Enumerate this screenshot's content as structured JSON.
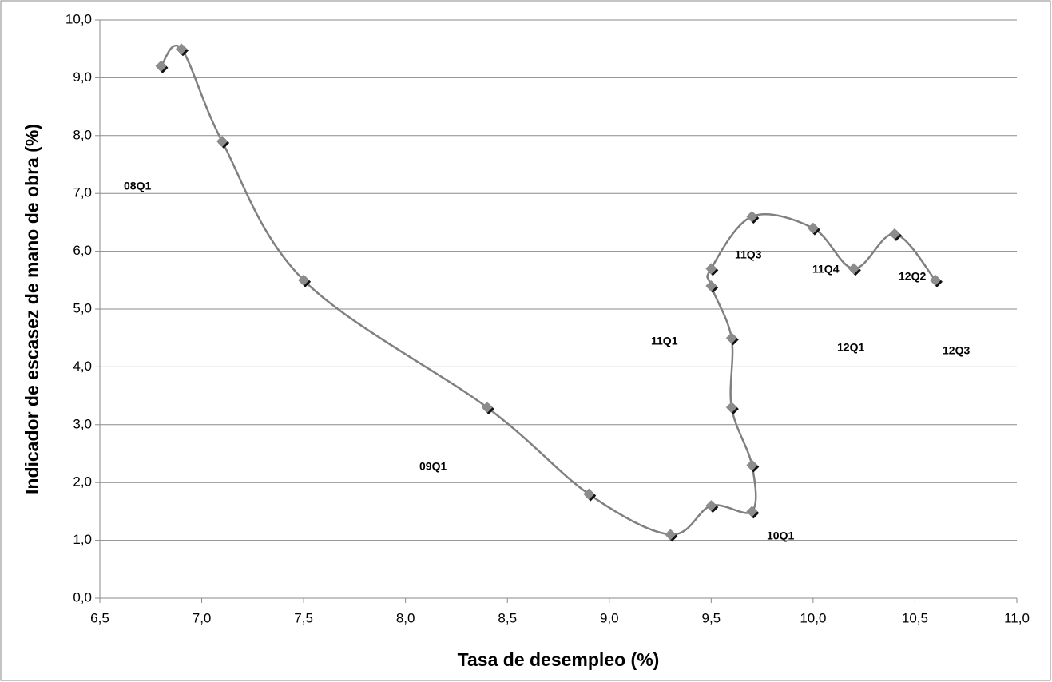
{
  "chart_data": {
    "type": "scatter",
    "x_label": "Tasa de desempleo (%)",
    "y_label": "Indicador de escasez de mano de obra (%)",
    "x": [
      6.8,
      6.9,
      7.1,
      7.5,
      8.4,
      8.9,
      9.3,
      9.5,
      9.7,
      9.7,
      9.6,
      9.6,
      9.5,
      9.5,
      9.7,
      10.0,
      10.2,
      10.4,
      10.6
    ],
    "values": [
      9.2,
      9.5,
      7.9,
      5.5,
      3.3,
      1.8,
      1.1,
      1.6,
      1.5,
      2.3,
      3.3,
      4.5,
      5.4,
      5.7,
      6.6,
      6.4,
      5.7,
      6.3,
      5.5
    ],
    "color": "#808080",
    "marker_color": "#8c8c8c",
    "line": "smooth",
    "xlim": [
      6.5,
      11.0
    ],
    "xticks": [
      {
        "value": 6.5,
        "label": "6,5"
      },
      {
        "value": 7.0,
        "label": "7,0"
      },
      {
        "value": 7.5,
        "label": "7,5"
      },
      {
        "value": 8.0,
        "label": "8,0"
      },
      {
        "value": 8.5,
        "label": "8,5"
      },
      {
        "value": 9.0,
        "label": "9,0"
      },
      {
        "value": 9.5,
        "label": "9,5"
      },
      {
        "value": 10.0,
        "label": "10,0"
      },
      {
        "value": 10.5,
        "label": "10,5"
      },
      {
        "value": 11.0,
        "label": "11,0"
      }
    ],
    "ylim": [
      0,
      10
    ],
    "yticks": [
      {
        "value": 0,
        "label": "0,0"
      },
      {
        "value": 1,
        "label": "1,0"
      },
      {
        "value": 2,
        "label": "2,0"
      },
      {
        "value": 3,
        "label": "3,0"
      },
      {
        "value": 4,
        "label": "4,0"
      },
      {
        "value": 5,
        "label": "5,0"
      },
      {
        "value": 6,
        "label": "6,0"
      },
      {
        "value": 7,
        "label": "7,0"
      },
      {
        "value": 8,
        "label": "8,0"
      },
      {
        "value": 9,
        "label": "9,0"
      },
      {
        "value": 10,
        "label": "10,0"
      }
    ],
    "grid": true,
    "annotations": [
      "08Q1",
      "09Q1",
      "10Q1",
      "11Q1",
      "11Q3",
      "11Q4",
      "12Q1",
      "12Q2",
      "12Q3"
    ]
  }
}
